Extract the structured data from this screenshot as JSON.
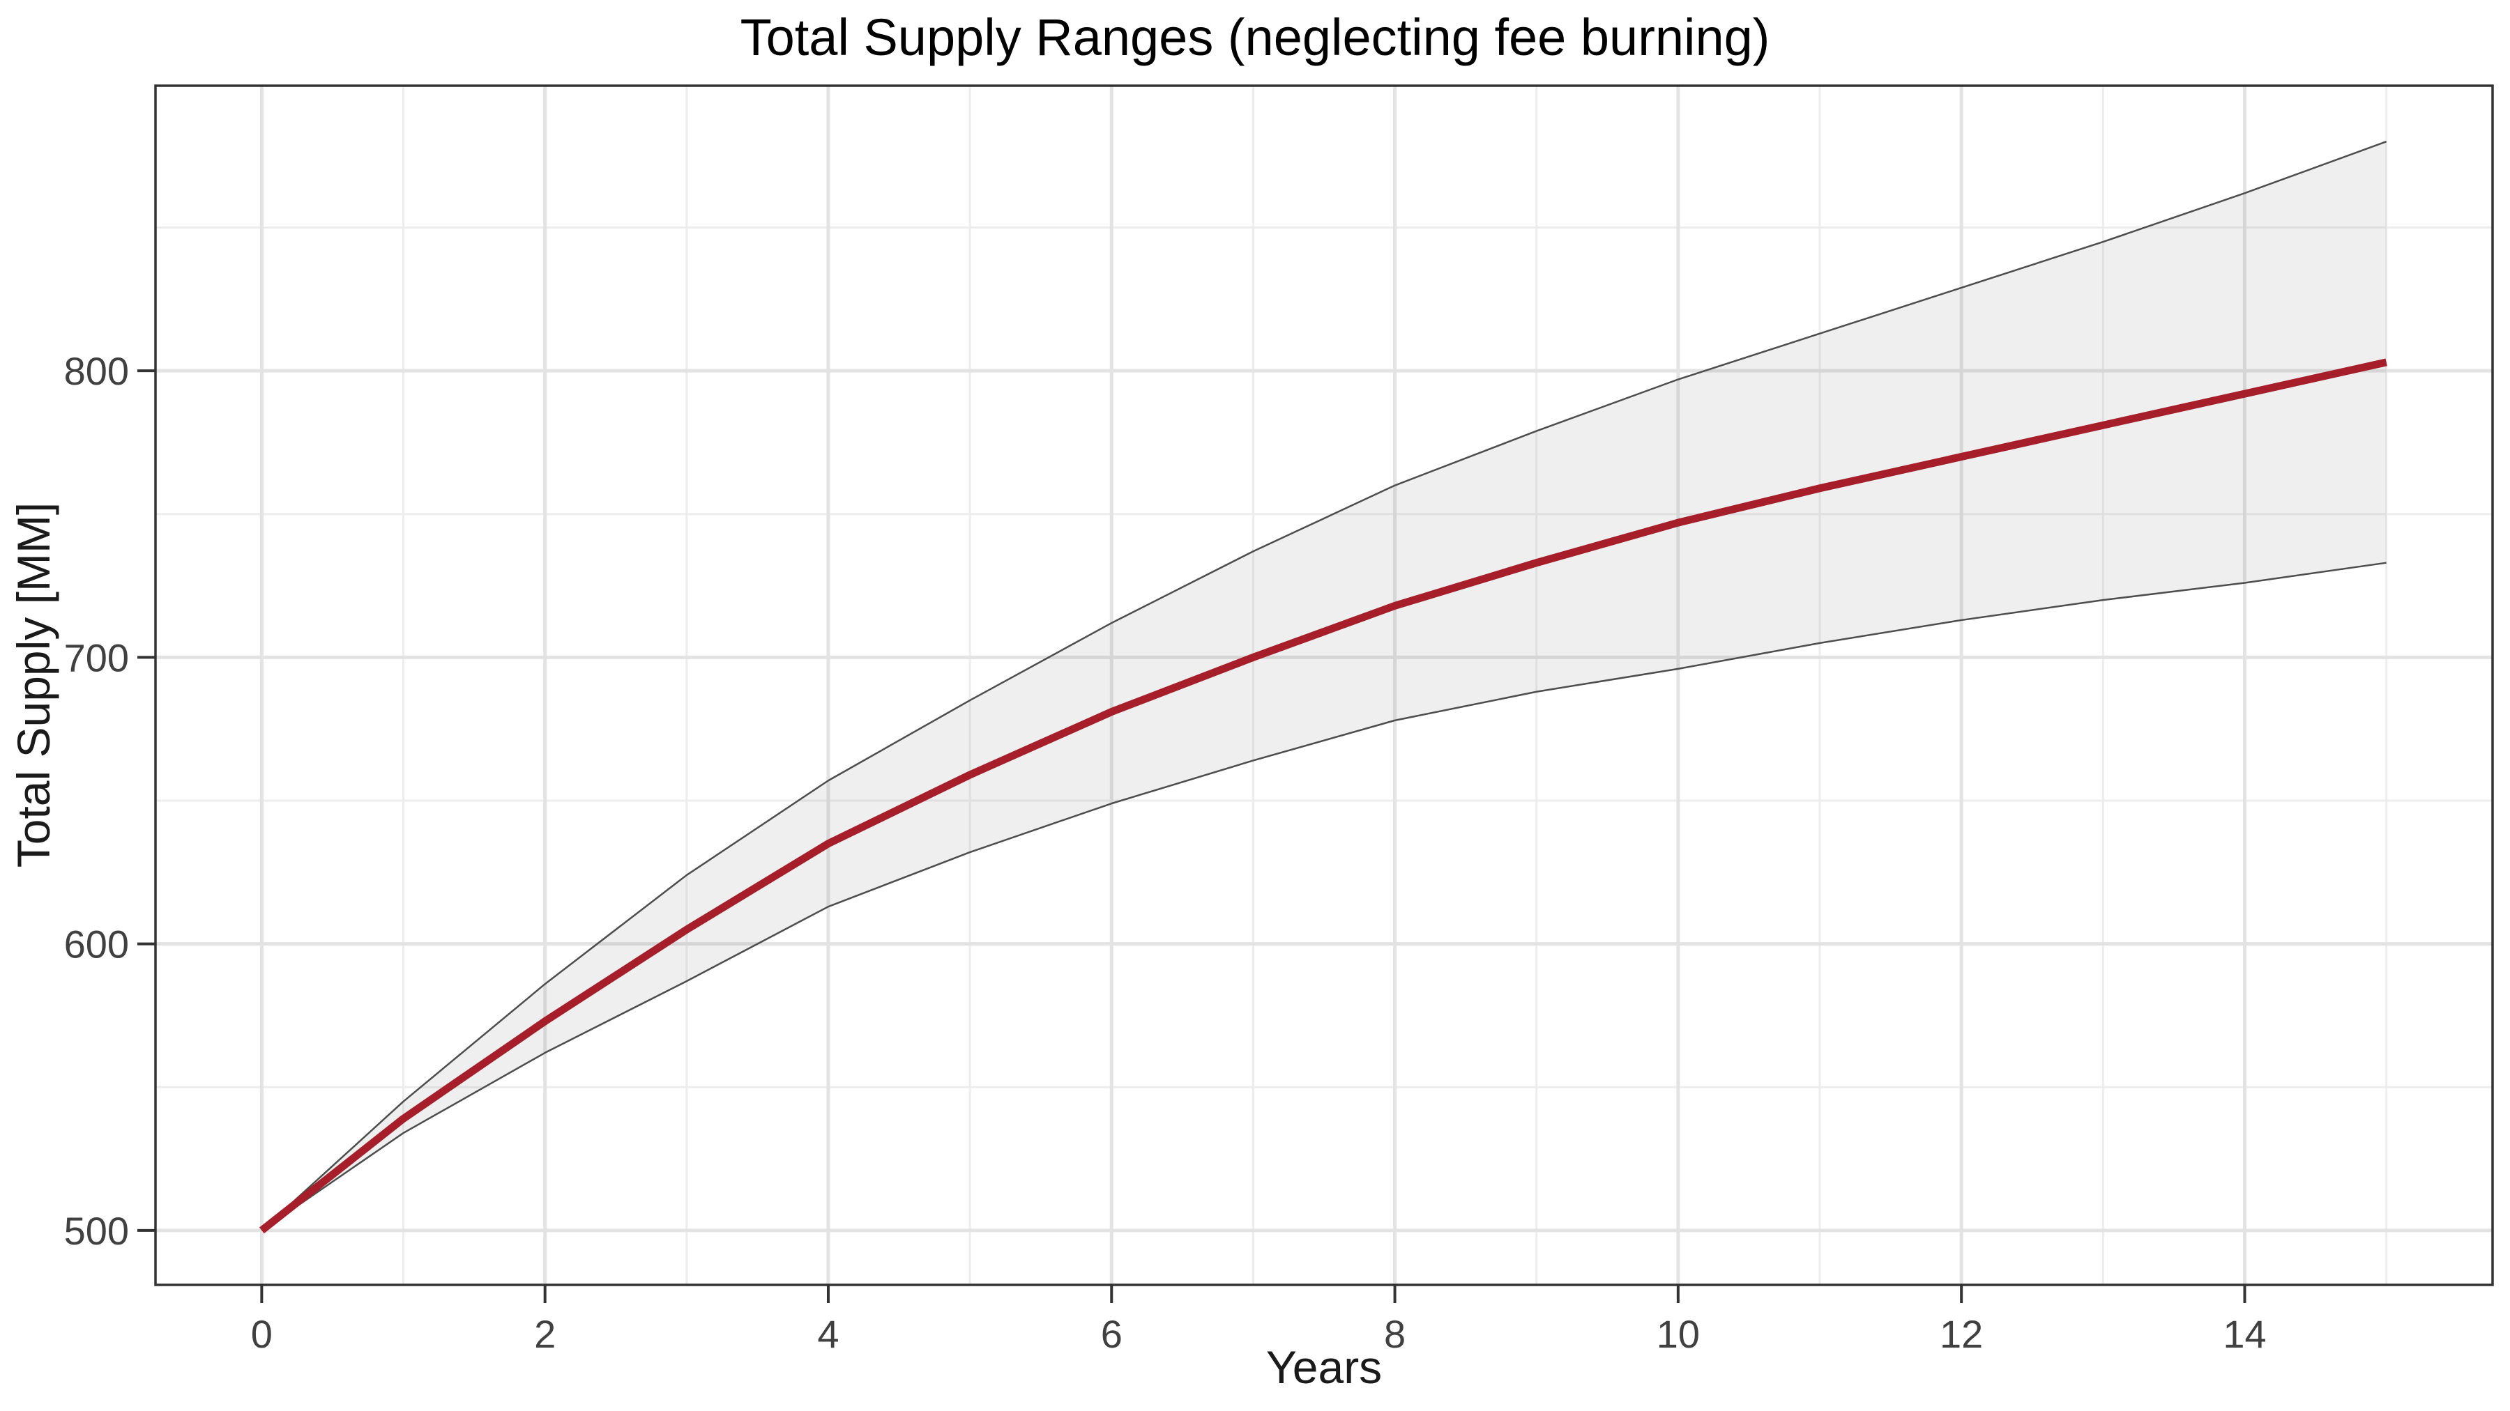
{
  "figure": {
    "background": "#FFFFFF"
  },
  "chart_data": {
    "type": "line",
    "title": "Total Supply Ranges (neglecting fee burning)",
    "xlabel": "Years",
    "ylabel": "Total Supply [MM]",
    "x": [
      0,
      1,
      2,
      3,
      4,
      5,
      6,
      7,
      8,
      9,
      10,
      11,
      12,
      13,
      14,
      15
    ],
    "series": [
      {
        "name": "median-total-supply",
        "role": "center-line",
        "color": "#A51E29",
        "stroke_width": 11,
        "values": [
          500,
          539,
          573,
          605,
          635,
          659,
          681,
          700,
          718,
          733,
          747,
          759,
          770,
          781,
          792,
          803
        ]
      },
      {
        "name": "upper-supply-bound",
        "role": "ribbon-upper-edge",
        "color": "#4D4D4D",
        "stroke_width": 2.5,
        "values": [
          500,
          545,
          586,
          624,
          657,
          685,
          712,
          737,
          760,
          779,
          797,
          813,
          829,
          845,
          862,
          880
        ]
      },
      {
        "name": "lower-supply-bound",
        "role": "ribbon-lower-edge",
        "color": "#4D4D4D",
        "stroke_width": 2.5,
        "values": [
          500,
          534,
          562,
          587,
          613,
          632,
          649,
          664,
          678,
          688,
          696,
          705,
          713,
          720,
          726,
          733
        ]
      }
    ],
    "ribbon": {
      "fill": "rgba(127,127,127,0.125)"
    },
    "axes": {
      "xlim": [
        -0.75,
        15.75
      ],
      "ylim": [
        481,
        899.5
      ],
      "xticks": [
        0,
        2,
        4,
        6,
        8,
        10,
        12,
        14
      ],
      "yticks": [
        500,
        600,
        700,
        800
      ],
      "x_minor": [
        1,
        3,
        5,
        7,
        9,
        11,
        13,
        15
      ],
      "y_minor": [
        550,
        650,
        750,
        850
      ]
    },
    "grid": {
      "visible": true,
      "major_color": "#E3E3E3",
      "minor_color": "#EDEDED",
      "major_width": 5,
      "minor_width": 3
    },
    "legend": "none",
    "styles": {
      "panel_border_color": "#333333",
      "panel_border_width": 3.5,
      "tick_color": "#333333",
      "tick_length": 26,
      "tick_width": 4,
      "tick_label_color": "#404040",
      "title_color": "#000000",
      "axis_label_color": "#1A1A1A"
    }
  }
}
